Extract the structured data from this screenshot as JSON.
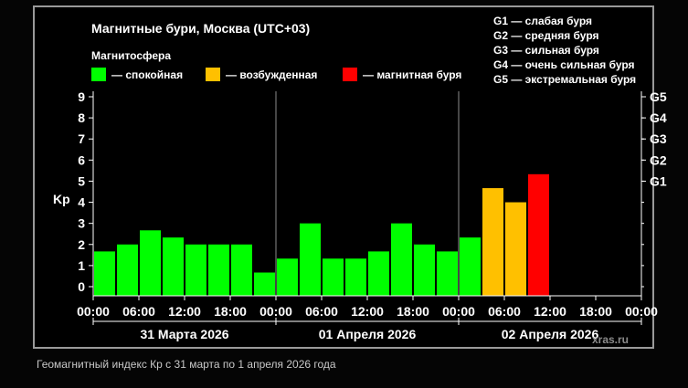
{
  "title": "Магнитные бури, Москва (UTC+03)",
  "legend": {
    "heading": "Магнитосфера",
    "items": [
      {
        "label": "— спокойная",
        "color": "#00ff00"
      },
      {
        "label": "— возбужденная",
        "color": "#ffc000"
      },
      {
        "label": "— магнитная буря",
        "color": "#ff0000"
      }
    ]
  },
  "g_legend": [
    "G1 — слабая буря",
    "G2 — средняя буря",
    "G3 — сильная буря",
    "G4 — очень сильная буря",
    "G5 — экстремальная буря"
  ],
  "watermark": "xras.ru",
  "caption": "Геомагнитный индекс Кр с 31 марта по 1 апреля 2026 года",
  "colors": {
    "calm": "#00ff00",
    "excited": "#ffc000",
    "storm": "#ff0000",
    "axis": "#ffffff",
    "frame": "#9a9a9a"
  },
  "chart_data": {
    "type": "bar",
    "ylabel": "Kp",
    "ylim": [
      0,
      9
    ],
    "yticks": [
      "0",
      "1",
      "2",
      "3",
      "4",
      "5",
      "6",
      "7",
      "8",
      "9"
    ],
    "gticks": [
      {
        "label": "G1",
        "kp": 5
      },
      {
        "label": "G2",
        "kp": 6
      },
      {
        "label": "G3",
        "kp": 7
      },
      {
        "label": "G4",
        "kp": 8
      },
      {
        "label": "G5",
        "kp": 9
      }
    ],
    "xticks": [
      "00:00",
      "06:00",
      "12:00",
      "18:00",
      "00:00",
      "06:00",
      "12:00",
      "18:00",
      "00:00",
      "06:00",
      "12:00",
      "18:00",
      "00:00"
    ],
    "days": [
      "31 Марта 2026",
      "01 Апреля 2026",
      "02 Апреля 2026"
    ],
    "slots_total": 24,
    "values": [
      1.67,
      2.0,
      2.67,
      2.33,
      2.0,
      2.0,
      2.0,
      0.67,
      1.33,
      3.0,
      1.33,
      1.33,
      1.67,
      3.0,
      2.0,
      1.67,
      2.33,
      4.67,
      4.0,
      5.33
    ],
    "levels": [
      "calm",
      "calm",
      "calm",
      "calm",
      "calm",
      "calm",
      "calm",
      "calm",
      "calm",
      "calm",
      "calm",
      "calm",
      "calm",
      "calm",
      "calm",
      "calm",
      "calm",
      "excited",
      "excited",
      "storm"
    ]
  }
}
